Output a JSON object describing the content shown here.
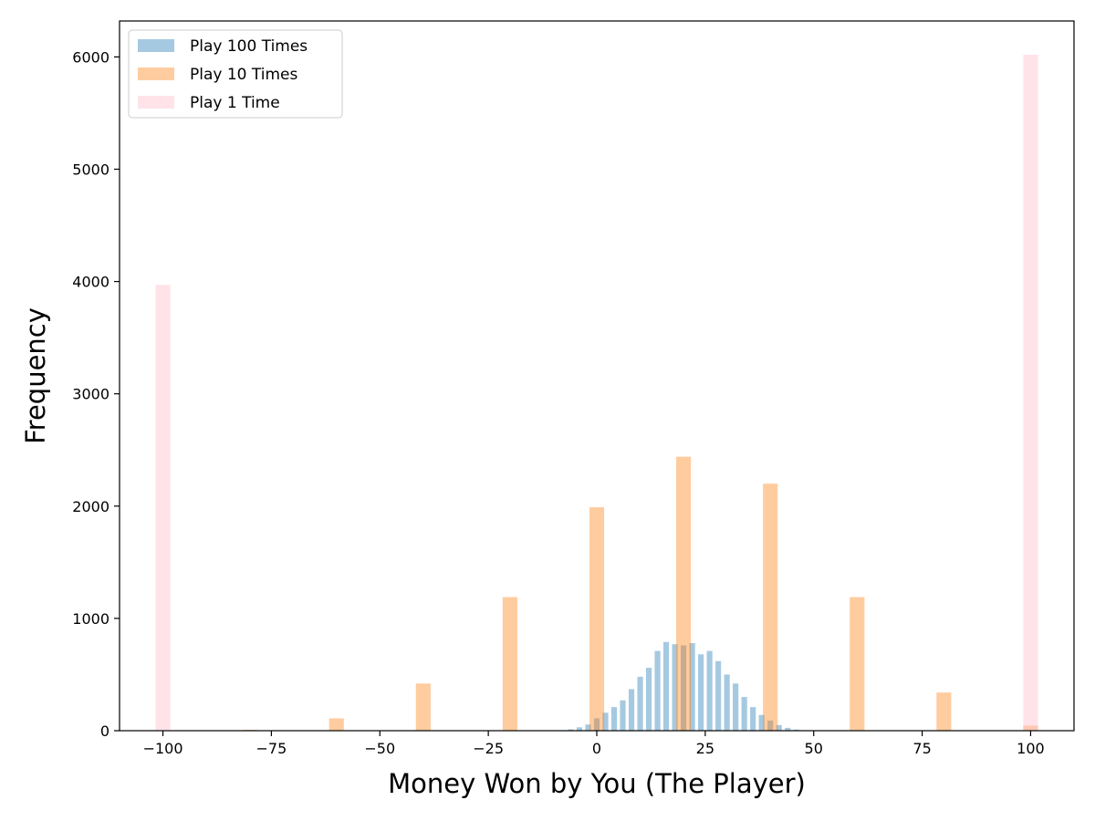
{
  "chart_data": {
    "type": "bar",
    "xlabel": "Money Won by You (The Player)",
    "ylabel": "Frequency",
    "xlim": [
      -110,
      110
    ],
    "ylim": [
      0,
      6320
    ],
    "xticks": [
      -100,
      -75,
      -50,
      -25,
      0,
      25,
      50,
      75,
      100
    ],
    "xtick_labels": [
      "−100",
      "−75",
      "−50",
      "−25",
      "0",
      "25",
      "50",
      "75",
      "100"
    ],
    "yticks": [
      0,
      1000,
      2000,
      3000,
      4000,
      5000,
      6000
    ],
    "ytick_labels": [
      "0",
      "1000",
      "2000",
      "3000",
      "4000",
      "5000",
      "6000"
    ],
    "grid": false,
    "legend_position": "top-left",
    "series": [
      {
        "name": "Play 100 Times",
        "color": "#1f77b4",
        "opacity": 0.4,
        "bar_width": 1.3,
        "x": [
          -8,
          -6,
          -4,
          -2,
          0,
          2,
          4,
          6,
          8,
          10,
          12,
          14,
          16,
          18,
          20,
          22,
          24,
          26,
          28,
          30,
          32,
          34,
          36,
          38,
          40,
          42,
          44,
          46
        ],
        "values": [
          5,
          12,
          30,
          55,
          110,
          160,
          210,
          270,
          370,
          480,
          560,
          710,
          790,
          770,
          760,
          780,
          680,
          710,
          620,
          500,
          420,
          300,
          210,
          140,
          90,
          50,
          25,
          10
        ]
      },
      {
        "name": "Play 10 Times",
        "color": "#ff7f0e",
        "opacity": 0.4,
        "bar_width": 3.4,
        "x": [
          -80,
          -60,
          -40,
          -20,
          0,
          20,
          40,
          60,
          80,
          100
        ],
        "values": [
          8,
          110,
          420,
          1190,
          1990,
          2440,
          2200,
          1190,
          340,
          45
        ]
      },
      {
        "name": "Play 1 Time",
        "color": "#ffc0cb",
        "opacity": 0.45,
        "bar_width": 3.4,
        "x": [
          -100,
          100
        ],
        "values": [
          3970,
          6020
        ]
      }
    ]
  }
}
